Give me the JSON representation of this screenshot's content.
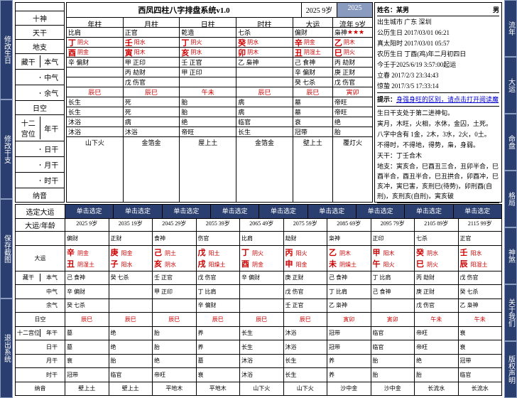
{
  "leftBtns": [
    "修改生日",
    "修改干支",
    "保存截图",
    "退出系统"
  ],
  "rightBtns": [
    "流年",
    "大运",
    "命盘",
    "格局",
    "神煞",
    "关于我们",
    "版权声明"
  ],
  "title": "西凤四柱八字排盘系统v1.0",
  "yr1": "2025 9岁",
  "yr2": "2025",
  "nav": {
    "r1": "",
    "r2": "十神",
    "r3": "天干",
    "r4": "地支",
    "r5": [
      "藏干",
      "本气"
    ],
    "r6": [
      "",
      "中气"
    ],
    "r7": [
      "",
      "余气"
    ],
    "r8": "日空",
    "r9": [
      "十二宫位",
      "年干"
    ],
    "r10": [
      "",
      "日干"
    ],
    "r11": [
      "",
      "月干"
    ],
    "r12": [
      "",
      "时干"
    ],
    "r13": "纳音"
  },
  "cols": [
    {
      "h": "年柱",
      "god": "比肩",
      "stem": "丁",
      "se": "阴火",
      "br": "酉",
      "be": "阴金",
      "bg": "辛 偏财",
      "zg": "",
      "yg": "",
      "kw": "辰巳",
      "p1": "长生",
      "p2": "长生",
      "p3": "沐浴",
      "p4": "沐浴",
      "ny": "山下火"
    },
    {
      "h": "月柱",
      "god": "正官",
      "stem": "壬",
      "se": "阳水",
      "br": "寅",
      "be": "阳木",
      "bg": "甲 正印",
      "zg": "丙 劫财",
      "yg": "戊 伤官",
      "kw": "辰巳",
      "p1": "死",
      "p2": "死",
      "p3": "病",
      "p4": "沐浴",
      "ny": "金箔金"
    },
    {
      "h": "日柱",
      "god": "乾造",
      "stem": "丁",
      "se": "阴火",
      "br": "亥",
      "be": "阴水",
      "bg": "壬 正官",
      "zg": "甲 正印",
      "yg": "",
      "kw": "午未",
      "p1": "胎",
      "p2": "胎",
      "p3": "绝",
      "p4": "帝旺",
      "ny": "屋上土"
    },
    {
      "h": "时柱",
      "god": "七杀",
      "stem": "癸",
      "se": "阴水",
      "br": "卯",
      "be": "阴木",
      "bg": "乙 枭神",
      "zg": "",
      "yg": "",
      "kw": "辰巳",
      "p1": "病",
      "p2": "病",
      "p3": "临官",
      "p4": "长生",
      "ny": "金箔金"
    }
  ],
  "dayun": {
    "h": "大运",
    "god": "偏财",
    "stem": "辛",
    "se": "阴金",
    "br": "丑",
    "be": "阴湿土",
    "bg": "己 食神",
    "zg": "辛 偏财",
    "yg": "癸 七杀",
    "kw": "辰巳",
    "p1": "墓",
    "p2": "墓",
    "p3": "衰",
    "p4": "冠带",
    "ny": "壁上土"
  },
  "liunian": {
    "h": "流年 9岁",
    "god": "枭神",
    "mark": "★★★",
    "stem": "乙",
    "se": "阴木",
    "br": "巳",
    "be": "阴火",
    "bg": "丙 劫财",
    "zg": "庚 正财",
    "yg": "戊 伤官",
    "kw": "寅卯",
    "p1": "帝旺",
    "p2": "帝旺",
    "p3": "绝",
    "p4": "胎",
    "ny": "覆灯火"
  },
  "info": {
    "nameL": "姓名：某男",
    "nameR": "男",
    "rows": [
      "出生城市 广东 深圳",
      "公历生日 2017/03/01 06:21",
      "真太阳时 2017/03/01 05:57",
      "农历生日 丁酉(鸡)年二月初四日",
      "今壬于2025/6/19 3:57:00起运",
      "立春 2017/2/3 23:34:43",
      "惊蛰 2017/3/5 17:33:14"
    ],
    "tip": "提示：身强身旺的区别，请点击打开阅读魔",
    "extra": [
      "生日干支处于第二进神旬。",
      "寅月，木旺，火相，水休，金囚，土死。",
      "八字中含有 1金，2木，3水，2火，0土。",
      "不得时，不得地，得势，枭，身弱。",
      "天干：丁壬合木",
      "地支：寅亥合，巳酉丑三合，丑卯半合，巳酉半合，酉丑半合，巳丑拱合，卯酉冲，巳亥冲，寅巳害，亥刑巳(待势)，卯刑酉(自刑)，亥刑亥(自刑)，寅亥破"
    ],
    "foot": "命:壬子 胎:癸巳 息:壬寅 变:戊戌 通:壬寅"
  },
  "daBtns": [
    "单击选定",
    "单击选定",
    "单击选定",
    "单击选定",
    "单击选定",
    "单击选定",
    "单击选定",
    "单击选定",
    "单击选定"
  ],
  "daLabel": "选定大运",
  "ageLabel": "大运/年龄",
  "ages": [
    "2025 9岁",
    "2035 19岁",
    "2045 29岁",
    "2055 39岁",
    "2065 49岁",
    "2075 59岁",
    "2085 69岁",
    "2095 79岁",
    "2105 89岁",
    "2115 99岁"
  ],
  "daNav": {
    "r1": "",
    "r2": "大运",
    "r3": [
      "藏干",
      "本气"
    ],
    "r4": [
      "",
      "中气"
    ],
    "r5": [
      "",
      "余气"
    ],
    "r6": "日空",
    "r7": [
      "十二宫位",
      "年干"
    ],
    "r8": [
      "",
      "日干"
    ],
    "r9": [
      "",
      "月干"
    ],
    "r10": [
      "",
      "时干"
    ],
    "r11": "纳音"
  },
  "daCols": [
    {
      "god": "偏财",
      "s": "辛",
      "se": "阴金",
      "b": "丑",
      "be": "阴湿土",
      "bg": "己 食神",
      "zg": "辛 偏财",
      "yg": "癸 七杀",
      "kw": "辰巳",
      "p1": "墓",
      "p2": "墓",
      "p3": "衰",
      "p4": "冠带",
      "ny": "壁上土"
    },
    {
      "god": "正财",
      "s": "庚",
      "se": "阳金",
      "b": "子",
      "be": "阳水",
      "bg": "癸 七杀",
      "zg": "",
      "yg": "",
      "kw": "辰巳",
      "p1": "绝",
      "p2": "绝",
      "p3": "胎",
      "p4": "临官",
      "ny": "壁上土"
    },
    {
      "god": "食神",
      "s": "己",
      "se": "阴土",
      "b": "亥",
      "be": "阴水",
      "bg": "壬 正官",
      "zg": "甲 正印",
      "yg": "",
      "kw": "辰巳",
      "p1": "胎",
      "p2": "胎",
      "p3": "绝",
      "p4": "帝旺",
      "ny": "平地木"
    },
    {
      "god": "伤官",
      "s": "戊",
      "se": "阳土",
      "b": "戌",
      "be": "阳燥土",
      "bg": "戊 伤官",
      "zg": "丁 比肩",
      "yg": "辛 偏财",
      "kw": "辰巳",
      "p1": "养",
      "p2": "养",
      "p3": "墓",
      "p4": "衰",
      "ny": "平地木"
    },
    {
      "god": "比肩",
      "s": "丁",
      "se": "阴火",
      "b": "酉",
      "be": "阴金",
      "bg": "辛 偏财",
      "zg": "",
      "yg": "",
      "kw": "辰巳",
      "p1": "长生",
      "p2": "长生",
      "p3": "沐浴",
      "p4": "沐浴",
      "ny": "山下火"
    },
    {
      "god": "劫财",
      "s": "丙",
      "se": "阳火",
      "b": "申",
      "be": "阳金",
      "bg": "庚 正财",
      "zg": "戊 伤官",
      "yg": "壬 正官",
      "kw": "辰巳",
      "p1": "沐浴",
      "p2": "沐浴",
      "p3": "长生",
      "p4": "长生",
      "ny": "山下火"
    },
    {
      "god": "枭神",
      "s": "乙",
      "se": "阴木",
      "b": "未",
      "be": "阴燥土",
      "bg": "己 食神",
      "zg": "丁 比肩",
      "yg": "乙 枭神",
      "kw": "寅卯",
      "p1": "冠带",
      "p2": "冠带",
      "p3": "养",
      "p4": "养",
      "ny": "沙中金"
    },
    {
      "god": "正印",
      "s": "甲",
      "se": "阳木",
      "b": "午",
      "be": "阳火",
      "bg": "丁 比肩",
      "zg": "己 食神",
      "yg": "",
      "kw": "寅卯",
      "p1": "临官",
      "p2": "临官",
      "p3": "胎",
      "p4": "胎",
      "ny": "沙中金"
    },
    {
      "god": "七杀",
      "s": "癸",
      "se": "阴水",
      "b": "巳",
      "be": "阴火",
      "bg": "丙 劫财",
      "zg": "庚 正财",
      "yg": "戊 伤官",
      "kw": "午未",
      "p1": "帝旺",
      "p2": "帝旺",
      "p3": "绝",
      "p4": "胎",
      "ny": "长流水"
    },
    {
      "god": "正官",
      "s": "壬",
      "se": "阳水",
      "b": "辰",
      "be": "阳湿土",
      "bg": "戊 伤官",
      "zg": "癸 七杀",
      "yg": "乙 枭神",
      "kw": "午未",
      "p1": "衰",
      "p2": "衰",
      "p3": "冠带",
      "p4": "临官",
      "ny": "长流水"
    }
  ]
}
